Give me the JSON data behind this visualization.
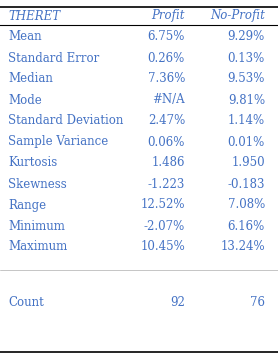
{
  "title_col1": "THERET",
  "title_col2": "Profit",
  "title_col3": "No-Profit",
  "rows": [
    [
      "Mean",
      "6.75%",
      "9.29%"
    ],
    [
      "Standard Error",
      "0.26%",
      "0.13%"
    ],
    [
      "Median",
      "7.36%",
      "9.53%"
    ],
    [
      "Mode",
      "#N/A",
      "9.81%"
    ],
    [
      "Standard Deviation",
      "2.47%",
      "1.14%"
    ],
    [
      "Sample Variance",
      "0.06%",
      "0.01%"
    ],
    [
      "Kurtosis",
      "1.486",
      "1.950"
    ],
    [
      "Skewness",
      "-1.223",
      "-0.183"
    ],
    [
      "Range",
      "12.52%",
      "7.08%"
    ],
    [
      "Minimum",
      "-2.07%",
      "6.16%"
    ],
    [
      "Maximum",
      "10.45%",
      "13.24%"
    ]
  ],
  "count_row": [
    "Count",
    "92",
    "76"
  ],
  "bg_color": "#ffffff",
  "line_color": "#000000",
  "text_color": "#4472c4",
  "font_size": 8.5,
  "header_font_size": 8.5
}
